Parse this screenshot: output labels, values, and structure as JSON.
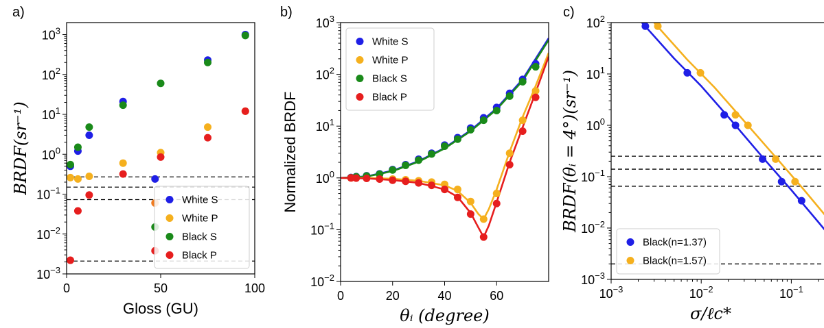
{
  "chart_data": [
    {
      "panel": "a)",
      "type": "scatter",
      "xlabel": "Gloss (GU)",
      "ylabel": "BRDF(sr⁻¹)",
      "xlim": [
        0,
        100
      ],
      "ylim": [
        0.001,
        2000
      ],
      "yscale": "log",
      "xticks": [
        0,
        50,
        100
      ],
      "xtick_labels": [
        "0",
        "50",
        "100"
      ],
      "yticks": [
        0.001,
        0.01,
        0.1,
        1,
        10,
        100,
        1000
      ],
      "ytick_labels": [
        "10⁻³",
        "10⁻²",
        "10⁻¹",
        "10⁰",
        "10¹",
        "10²",
        "10³"
      ],
      "legend_position": "lower-right",
      "series": [
        {
          "name": "White S",
          "color": "#1f1fe6",
          "x": [
            2,
            6,
            12,
            30,
            47,
            75,
            95
          ],
          "y": [
            0.5,
            1.2,
            3.0,
            21,
            0.24,
            230,
            1000
          ]
        },
        {
          "name": "White P",
          "color": "#f5b01e",
          "x": [
            2,
            6,
            12,
            30,
            50,
            75,
            95
          ],
          "y": [
            0.26,
            0.24,
            0.28,
            0.6,
            1.1,
            4.8,
            12
          ]
        },
        {
          "name": "Black S",
          "color": "#1a8a1a",
          "x": [
            2,
            6,
            12,
            30,
            47,
            50,
            75,
            95
          ],
          "y": [
            0.55,
            1.5,
            4.8,
            17,
            0.015,
            60,
            200,
            950
          ]
        },
        {
          "name": "Black P",
          "color": "#e61e1e",
          "x": [
            2,
            6,
            12,
            30,
            47,
            50,
            75,
            95
          ],
          "y": [
            0.0022,
            0.038,
            0.095,
            0.32,
            0.0038,
            0.85,
            2.6,
            12
          ]
        }
      ],
      "extra_points": [
        {
          "x": 47,
          "y": 0.06,
          "color": "#f07a1e"
        }
      ],
      "hlines": [
        0.27,
        0.15,
        0.073,
        0.0021
      ]
    },
    {
      "panel": "b)",
      "type": "scatter",
      "xlabel": "θᵢ (degree)",
      "ylabel": "Normalized BRDF",
      "xlim": [
        0,
        80
      ],
      "ylim": [
        0.01,
        1000
      ],
      "yscale": "log",
      "xticks": [
        0,
        20,
        40,
        60
      ],
      "xtick_labels": [
        "0",
        "20",
        "40",
        "60"
      ],
      "yticks": [
        0.01,
        0.1,
        1,
        10,
        100,
        1000
      ],
      "ytick_labels": [
        "10⁻²",
        "10⁻¹",
        "10⁰",
        "10¹",
        "10²",
        "10³"
      ],
      "legend_position": "upper-left",
      "series": [
        {
          "name": "White S",
          "color": "#1f1fe6",
          "x": [
            4,
            6,
            10,
            15,
            20,
            25,
            30,
            35,
            40,
            45,
            50,
            55,
            60,
            65,
            70,
            75
          ],
          "y": [
            1.02,
            1.06,
            1.1,
            1.2,
            1.45,
            1.8,
            2.3,
            3.0,
            4.3,
            6.0,
            9.2,
            14.5,
            23,
            43,
            80,
            160
          ]
        },
        {
          "name": "White P",
          "color": "#f5b01e",
          "x": [
            4,
            6,
            10,
            15,
            20,
            25,
            30,
            35,
            40,
            45,
            50,
            55,
            60,
            65,
            70,
            75
          ],
          "y": [
            1.0,
            1.0,
            1.0,
            0.98,
            0.95,
            0.92,
            0.88,
            0.83,
            0.75,
            0.6,
            0.35,
            0.16,
            0.5,
            3.0,
            13,
            48
          ]
        },
        {
          "name": "Black S",
          "color": "#1a8a1a",
          "x": [
            4,
            6,
            10,
            15,
            20,
            25,
            30,
            35,
            40,
            45,
            50,
            55,
            60,
            65,
            70,
            75
          ],
          "y": [
            1.01,
            1.05,
            1.09,
            1.18,
            1.42,
            1.75,
            2.2,
            2.9,
            4.1,
            5.6,
            8.5,
            13,
            20,
            38,
            72,
            140
          ]
        },
        {
          "name": "Black P",
          "color": "#e61e1e",
          "x": [
            4,
            6,
            10,
            15,
            20,
            25,
            30,
            35,
            40,
            45,
            50,
            55,
            60,
            65,
            70,
            75
          ],
          "y": [
            1.0,
            0.99,
            0.98,
            0.95,
            0.9,
            0.86,
            0.8,
            0.72,
            0.6,
            0.42,
            0.2,
            0.072,
            0.32,
            1.8,
            8.0,
            36
          ]
        }
      ],
      "fit_curves": [
        {
          "color": "#1f1fe6",
          "x": [
            0,
            10,
            20,
            30,
            40,
            50,
            60,
            70,
            80
          ],
          "y": [
            1.0,
            1.07,
            1.38,
            2.1,
            3.8,
            8.3,
            22,
            80,
            500
          ]
        },
        {
          "color": "#1a8a1a",
          "x": [
            0,
            10,
            20,
            30,
            40,
            50,
            60,
            70,
            80
          ],
          "y": [
            1.0,
            1.06,
            1.35,
            2.05,
            3.7,
            8.0,
            21,
            75,
            460
          ]
        },
        {
          "color": "#f5b01e",
          "x": [
            0,
            10,
            20,
            30,
            40,
            45,
            50,
            53,
            55,
            57,
            60,
            65,
            70,
            75,
            80
          ],
          "y": [
            1.0,
            1.0,
            0.96,
            0.88,
            0.72,
            0.56,
            0.33,
            0.2,
            0.16,
            0.25,
            0.6,
            3.2,
            15,
            60,
            260
          ]
        },
        {
          "color": "#e61e1e",
          "x": [
            0,
            10,
            20,
            30,
            40,
            45,
            50,
            53,
            55,
            57,
            60,
            65,
            70,
            75,
            80
          ],
          "y": [
            1.0,
            0.98,
            0.91,
            0.8,
            0.6,
            0.43,
            0.21,
            0.11,
            0.072,
            0.12,
            0.34,
            2.0,
            9.5,
            45,
            220
          ]
        }
      ]
    },
    {
      "panel": "c)",
      "type": "scatter",
      "xlabel": "σ/ℓc*",
      "ylabel": "BRDF(θᵢ = 4°)(sr⁻¹)",
      "xlim": [
        0.001,
        0.3
      ],
      "ylim": [
        0.001,
        100
      ],
      "xscale": "log",
      "yscale": "log",
      "xticks": [
        0.001,
        0.01,
        0.1
      ],
      "xtick_labels": [
        "10⁻³",
        "10⁻²",
        "10⁻¹"
      ],
      "yticks": [
        0.001,
        0.01,
        0.1,
        1,
        10,
        100
      ],
      "ytick_labels": [
        "10⁻³",
        "10⁻²",
        "10⁻¹",
        "10⁰",
        "10¹",
        "10²"
      ],
      "legend_position": "lower-left",
      "series": [
        {
          "name": "Black(n=1.37)",
          "color": "#1f1fe6",
          "x": [
            0.0024,
            0.007,
            0.018,
            0.024,
            0.048,
            0.078,
            0.13
          ],
          "y": [
            85,
            10.5,
            1.6,
            1.0,
            0.22,
            0.08,
            0.034
          ]
        },
        {
          "name": "Black(n=1.57)",
          "color": "#f5b01e",
          "x": [
            0.0033,
            0.0098,
            0.024,
            0.033,
            0.067,
            0.11
          ],
          "y": [
            85,
            10.5,
            1.6,
            1.0,
            0.22,
            0.08
          ]
        }
      ],
      "fit_curves": [
        {
          "color": "#1f1fe6",
          "x": [
            0.0022,
            0.005,
            0.01,
            0.02,
            0.05,
            0.1,
            0.2,
            0.3
          ],
          "y": [
            100,
            20,
            5.8,
            1.45,
            0.22,
            0.055,
            0.013,
            0.0055
          ]
        },
        {
          "color": "#f5b01e",
          "x": [
            0.003,
            0.007,
            0.014,
            0.028,
            0.07,
            0.14,
            0.28,
            0.3
          ],
          "y": [
            100,
            19,
            5.5,
            1.38,
            0.22,
            0.054,
            0.0125,
            0.011
          ]
        }
      ],
      "hlines": [
        0.25,
        0.14,
        0.065,
        0.002
      ]
    }
  ]
}
